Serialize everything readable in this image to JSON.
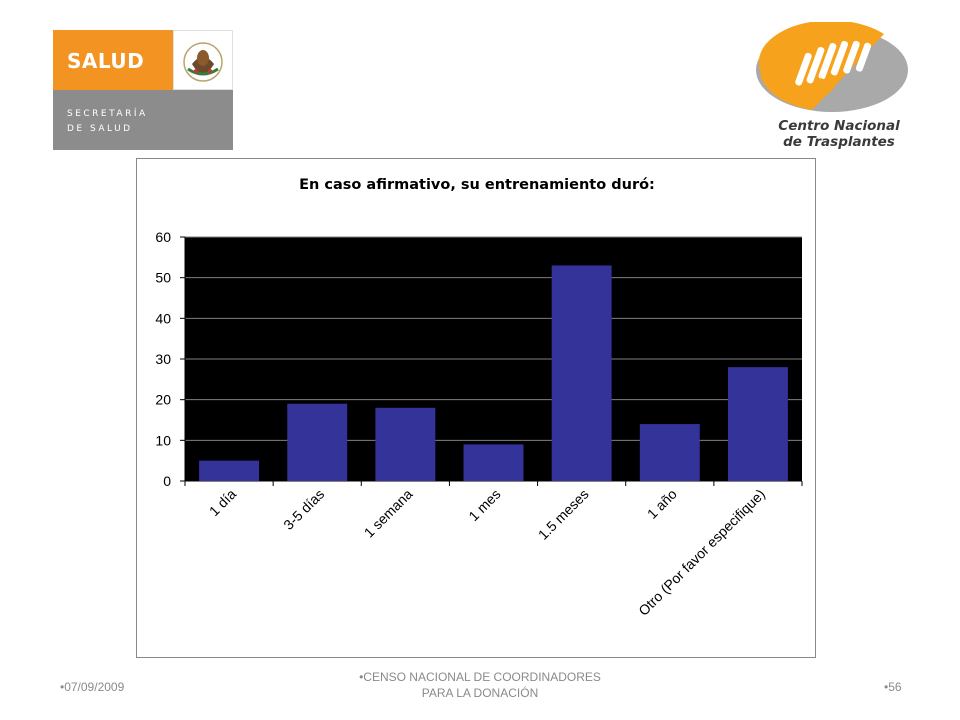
{
  "logos": {
    "salud": {
      "word": "SALUD",
      "line1": "SECRETARÍA",
      "line2": "DE SALUD",
      "colors": {
        "orange": "#f39321",
        "grey": "#8c8c8c"
      },
      "seal_icon": "mexican-coat-of-arms-icon"
    },
    "cnt": {
      "line1": "Centro Nacional",
      "line2": "de Trasplantes",
      "colors": {
        "orange": "#f6a21d",
        "grey": "#a9a9a9"
      },
      "icon": "hands-heart-icon"
    }
  },
  "chart_data": {
    "type": "bar",
    "title": "En caso afirmativo, su entrenamiento duró:",
    "categories": [
      "1 día",
      "3-5 días",
      "1 semana",
      "1 mes",
      "1.5 meses",
      "1 año",
      "Otro (Por favor especifique)"
    ],
    "values": [
      5,
      19,
      18,
      9,
      53,
      14,
      28
    ],
    "ylim": [
      0,
      60
    ],
    "yticks": [
      0,
      10,
      20,
      30,
      40,
      50,
      60
    ],
    "xlabel": "",
    "ylabel": "",
    "grid": true,
    "legend": "none",
    "colors": {
      "bar": "#33339a",
      "plot_background": "#000000",
      "gridline": "#7f7f7f"
    }
  },
  "footer": {
    "date": "07/09/2009",
    "center_line1": "CENSO NACIONAL DE COORDINADORES",
    "center_line2": "PARA LA DONACIÓN",
    "page": "56"
  }
}
